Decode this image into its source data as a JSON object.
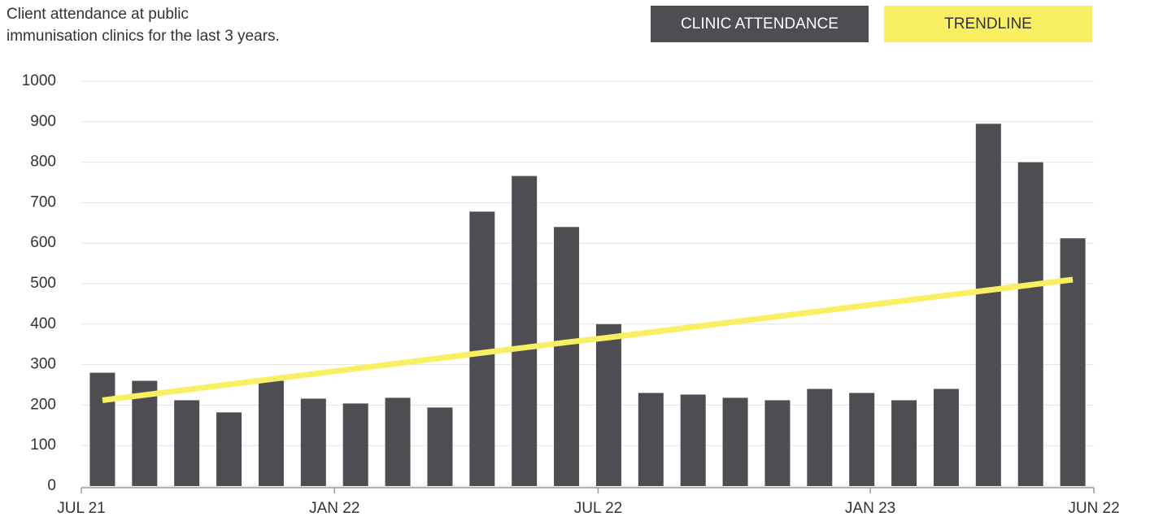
{
  "chart_data": {
    "type": "bar",
    "title": [
      "Client attendance at public",
      "immunisation clinics for the last 3 years."
    ],
    "categories": [
      null,
      null,
      null,
      null,
      null,
      null,
      null,
      null,
      null,
      null,
      null,
      null,
      null,
      null,
      null,
      null,
      null,
      null,
      null,
      null,
      null,
      null,
      null,
      null
    ],
    "series": [
      {
        "name": "CLINIC ATTENDANCE",
        "color": "#4d4d52",
        "type": "bar",
        "values": [
          280,
          260,
          212,
          182,
          260,
          216,
          204,
          218,
          194,
          678,
          766,
          640,
          400,
          230,
          226,
          218,
          212,
          240,
          230,
          212,
          240,
          895,
          800,
          612
        ]
      },
      {
        "name": "TRENDLINE",
        "color": "#f9ef62",
        "type": "line",
        "values": [
          212,
          225,
          238,
          251,
          264,
          277,
          290,
          303,
          316,
          329,
          342,
          355,
          367,
          380,
          393,
          406,
          419,
          432,
          445,
          458,
          471,
          484,
          497,
          510
        ]
      }
    ],
    "ylim": [
      0,
      1000
    ],
    "yticks": [
      0,
      100,
      200,
      300,
      400,
      500,
      600,
      700,
      800,
      900,
      1000
    ],
    "xticks": [
      {
        "value": 0,
        "label": "JUL 21"
      },
      {
        "value": 6,
        "label": "JAN 22"
      },
      {
        "value": 12.25,
        "label": "JUL 22"
      },
      {
        "value": 18.7,
        "label": "JAN 23"
      },
      {
        "value": 24,
        "label": "JUN 22"
      }
    ],
    "grid": true
  }
}
